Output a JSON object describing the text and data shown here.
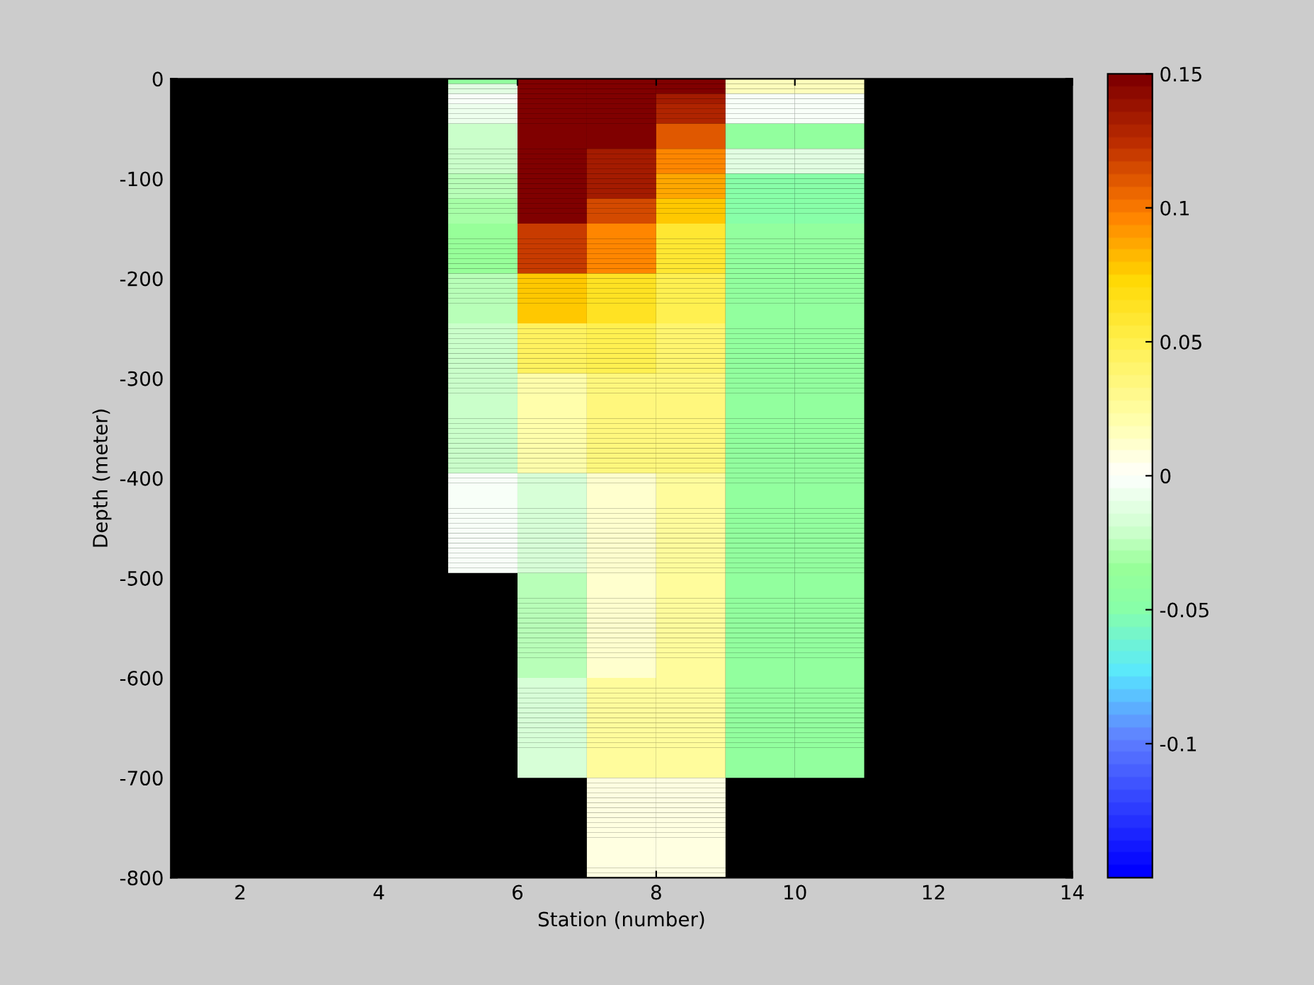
{
  "chart_data": {
    "type": "heatmap",
    "xlabel": "Station (number)",
    "ylabel": "Depth (meter)",
    "xlim": [
      1,
      14
    ],
    "xticks": [
      2,
      4,
      6,
      8,
      10,
      12,
      14
    ],
    "ylim": [
      -800,
      0
    ],
    "yticks": [
      -800,
      -700,
      -600,
      -500,
      -400,
      -300,
      -200,
      -100,
      0
    ],
    "clim": [
      -0.15,
      0.15
    ],
    "cticks": [
      {
        "value": -0.1,
        "label": "-0.1"
      },
      {
        "value": -0.05,
        "label": "-0.05"
      },
      0,
      0.05,
      0.1,
      0.15
    ],
    "cells": [
      [
        null,
        null,
        null,
        null,
        -0.04,
        0.15,
        0.15,
        0.15,
        0.015,
        0.015,
        null,
        null,
        null
      ],
      [
        null,
        null,
        null,
        null,
        -0.01,
        0.15,
        0.15,
        0.15,
        0.015,
        0.015,
        null,
        null,
        null
      ],
      [
        null,
        null,
        null,
        null,
        -0.01,
        0.15,
        0.15,
        0.15,
        0.015,
        0.015,
        null,
        null,
        null
      ],
      [
        null,
        null,
        null,
        null,
        -0.003,
        0.15,
        0.15,
        0.135,
        -0.004,
        -0.004,
        null,
        null,
        null
      ],
      [
        null,
        null,
        null,
        null,
        -0.003,
        0.15,
        0.15,
        0.135,
        -0.004,
        -0.004,
        null,
        null,
        null
      ],
      [
        null,
        null,
        null,
        null,
        -0.008,
        0.15,
        0.15,
        0.13,
        -0.004,
        -0.004,
        null,
        null,
        null
      ],
      [
        null,
        null,
        null,
        null,
        -0.008,
        0.15,
        0.15,
        0.13,
        -0.004,
        -0.004,
        null,
        null,
        null
      ],
      [
        null,
        null,
        null,
        null,
        -0.008,
        0.15,
        0.15,
        0.13,
        -0.004,
        -0.004,
        null,
        null,
        null
      ],
      [
        null,
        null,
        null,
        null,
        -0.008,
        0.15,
        0.15,
        0.13,
        -0.004,
        -0.004,
        null,
        null,
        null
      ],
      [
        null,
        null,
        null,
        null,
        -0.02,
        0.15,
        0.15,
        0.11,
        -0.04,
        -0.04,
        null,
        null,
        null
      ],
      [
        null,
        null,
        null,
        null,
        -0.02,
        0.15,
        0.15,
        0.11,
        -0.04,
        -0.04,
        null,
        null,
        null
      ],
      [
        null,
        null,
        null,
        null,
        -0.02,
        0.15,
        0.15,
        0.11,
        -0.04,
        -0.04,
        null,
        null,
        null
      ],
      [
        null,
        null,
        null,
        null,
        -0.02,
        0.15,
        0.15,
        0.11,
        -0.04,
        -0.04,
        null,
        null,
        null
      ],
      [
        null,
        null,
        null,
        null,
        -0.02,
        0.15,
        0.15,
        0.11,
        -0.04,
        -0.04,
        null,
        null,
        null
      ],
      [
        null,
        null,
        null,
        null,
        -0.02,
        0.15,
        0.135,
        0.095,
        -0.012,
        -0.012,
        null,
        null,
        null
      ],
      [
        null,
        null,
        null,
        null,
        -0.02,
        0.15,
        0.135,
        0.095,
        -0.012,
        -0.012,
        null,
        null,
        null
      ],
      [
        null,
        null,
        null,
        null,
        -0.02,
        0.15,
        0.135,
        0.095,
        -0.012,
        -0.012,
        null,
        null,
        null
      ],
      [
        null,
        null,
        null,
        null,
        -0.02,
        0.15,
        0.135,
        0.095,
        -0.012,
        -0.012,
        null,
        null,
        null
      ],
      [
        null,
        null,
        null,
        null,
        -0.02,
        0.15,
        0.135,
        0.095,
        -0.012,
        -0.012,
        null,
        null,
        null
      ],
      [
        null,
        null,
        null,
        null,
        -0.025,
        0.15,
        0.135,
        0.085,
        -0.05,
        -0.05,
        null,
        null,
        null
      ],
      [
        null,
        null,
        null,
        null,
        -0.025,
        0.15,
        0.135,
        0.085,
        -0.05,
        -0.05,
        null,
        null,
        null
      ],
      [
        null,
        null,
        null,
        null,
        -0.025,
        0.15,
        0.135,
        0.085,
        -0.05,
        -0.05,
        null,
        null,
        null
      ],
      [
        null,
        null,
        null,
        null,
        -0.025,
        0.15,
        0.135,
        0.085,
        -0.05,
        -0.05,
        null,
        null,
        null
      ],
      [
        null,
        null,
        null,
        null,
        -0.025,
        0.15,
        0.135,
        0.085,
        -0.05,
        -0.05,
        null,
        null,
        null
      ],
      [
        null,
        null,
        null,
        null,
        -0.03,
        0.15,
        0.115,
        0.075,
        -0.05,
        -0.05,
        null,
        null,
        null
      ],
      [
        null,
        null,
        null,
        null,
        -0.03,
        0.15,
        0.115,
        0.075,
        -0.05,
        -0.05,
        null,
        null,
        null
      ],
      [
        null,
        null,
        null,
        null,
        -0.03,
        0.15,
        0.115,
        0.075,
        -0.05,
        -0.05,
        null,
        null,
        null
      ],
      [
        null,
        null,
        null,
        null,
        -0.03,
        0.15,
        0.115,
        0.075,
        -0.05,
        -0.05,
        null,
        null,
        null
      ],
      [
        null,
        null,
        null,
        null,
        -0.03,
        0.15,
        0.115,
        0.075,
        -0.05,
        -0.05,
        null,
        null,
        null
      ],
      [
        null,
        null,
        null,
        null,
        -0.035,
        0.12,
        0.095,
        0.06,
        -0.04,
        -0.04,
        null,
        null,
        null
      ],
      [
        null,
        null,
        null,
        null,
        -0.035,
        0.12,
        0.095,
        0.06,
        -0.04,
        -0.04,
        null,
        null,
        null
      ],
      [
        null,
        null,
        null,
        null,
        -0.035,
        0.12,
        0.095,
        0.06,
        -0.04,
        -0.04,
        null,
        null,
        null
      ],
      [
        null,
        null,
        null,
        null,
        -0.035,
        0.12,
        0.095,
        0.06,
        -0.04,
        -0.04,
        null,
        null,
        null
      ],
      [
        null,
        null,
        null,
        null,
        -0.035,
        0.12,
        0.095,
        0.06,
        -0.04,
        -0.04,
        null,
        null,
        null
      ],
      [
        null,
        null,
        null,
        null,
        -0.035,
        0.12,
        0.095,
        0.06,
        -0.04,
        -0.04,
        null,
        null,
        null
      ],
      [
        null,
        null,
        null,
        null,
        -0.035,
        0.12,
        0.095,
        0.06,
        -0.04,
        -0.04,
        null,
        null,
        null
      ],
      [
        null,
        null,
        null,
        null,
        -0.035,
        0.12,
        0.095,
        0.06,
        -0.04,
        -0.04,
        null,
        null,
        null
      ],
      [
        null,
        null,
        null,
        null,
        -0.035,
        0.12,
        0.095,
        0.06,
        -0.04,
        -0.04,
        null,
        null,
        null
      ],
      [
        null,
        null,
        null,
        null,
        -0.035,
        0.12,
        0.095,
        0.06,
        -0.04,
        -0.04,
        null,
        null,
        null
      ],
      [
        null,
        null,
        null,
        null,
        -0.028,
        0.075,
        0.065,
        0.05,
        -0.04,
        -0.04,
        null,
        null,
        null
      ],
      [
        null,
        null,
        null,
        null,
        -0.028,
        0.075,
        0.065,
        0.05,
        -0.04,
        -0.04,
        null,
        null,
        null
      ],
      [
        null,
        null,
        null,
        null,
        -0.028,
        0.075,
        0.065,
        0.05,
        -0.04,
        -0.04,
        null,
        null,
        null
      ],
      [
        null,
        null,
        null,
        null,
        -0.028,
        0.075,
        0.065,
        0.05,
        -0.04,
        -0.04,
        null,
        null,
        null
      ],
      [
        null,
        null,
        null,
        null,
        -0.028,
        0.075,
        0.065,
        0.05,
        -0.04,
        -0.04,
        null,
        null,
        null
      ],
      [
        null,
        null,
        null,
        null,
        -0.028,
        0.075,
        0.065,
        0.05,
        -0.04,
        -0.04,
        null,
        null,
        null
      ],
      [
        null,
        null,
        null,
        null,
        -0.028,
        0.075,
        0.065,
        0.05,
        -0.04,
        -0.04,
        null,
        null,
        null
      ],
      [
        null,
        null,
        null,
        null,
        -0.028,
        0.075,
        0.065,
        0.05,
        -0.04,
        -0.04,
        null,
        null,
        null
      ],
      [
        null,
        null,
        null,
        null,
        -0.028,
        0.075,
        0.065,
        0.05,
        -0.04,
        -0.04,
        null,
        null,
        null
      ],
      [
        null,
        null,
        null,
        null,
        -0.028,
        0.075,
        0.065,
        0.05,
        -0.04,
        -0.04,
        null,
        null,
        null
      ],
      [
        null,
        null,
        null,
        null,
        -0.02,
        0.045,
        0.048,
        0.04,
        -0.04,
        -0.04,
        null,
        null,
        null
      ],
      [
        null,
        null,
        null,
        null,
        -0.02,
        0.045,
        0.048,
        0.04,
        -0.04,
        -0.04,
        null,
        null,
        null
      ],
      [
        null,
        null,
        null,
        null,
        -0.02,
        0.045,
        0.048,
        0.04,
        -0.04,
        -0.04,
        null,
        null,
        null
      ],
      [
        null,
        null,
        null,
        null,
        -0.02,
        0.045,
        0.048,
        0.04,
        -0.04,
        -0.04,
        null,
        null,
        null
      ],
      [
        null,
        null,
        null,
        null,
        -0.02,
        0.045,
        0.048,
        0.04,
        -0.04,
        -0.04,
        null,
        null,
        null
      ],
      [
        null,
        null,
        null,
        null,
        -0.02,
        0.045,
        0.048,
        0.04,
        -0.04,
        -0.04,
        null,
        null,
        null
      ],
      [
        null,
        null,
        null,
        null,
        -0.02,
        0.045,
        0.048,
        0.04,
        -0.04,
        -0.04,
        null,
        null,
        null
      ],
      [
        null,
        null,
        null,
        null,
        -0.02,
        0.045,
        0.048,
        0.04,
        -0.04,
        -0.04,
        null,
        null,
        null
      ],
      [
        null,
        null,
        null,
        null,
        -0.02,
        0.045,
        0.048,
        0.04,
        -0.04,
        -0.04,
        null,
        null,
        null
      ],
      [
        null,
        null,
        null,
        null,
        -0.02,
        0.045,
        0.048,
        0.04,
        -0.04,
        -0.04,
        null,
        null,
        null
      ],
      [
        null,
        null,
        null,
        null,
        -0.02,
        0.02,
        0.035,
        0.035,
        -0.04,
        -0.04,
        null,
        null,
        null
      ],
      [
        null,
        null,
        null,
        null,
        -0.02,
        0.02,
        0.035,
        0.035,
        -0.04,
        -0.04,
        null,
        null,
        null
      ],
      [
        null,
        null,
        null,
        null,
        -0.02,
        0.02,
        0.035,
        0.035,
        -0.04,
        -0.04,
        null,
        null,
        null
      ],
      [
        null,
        null,
        null,
        null,
        -0.02,
        0.02,
        0.035,
        0.035,
        -0.04,
        -0.04,
        null,
        null,
        null
      ],
      [
        null,
        null,
        null,
        null,
        -0.02,
        0.02,
        0.035,
        0.035,
        -0.04,
        -0.04,
        null,
        null,
        null
      ],
      [
        null,
        null,
        null,
        null,
        -0.02,
        0.02,
        0.035,
        0.035,
        -0.04,
        -0.04,
        null,
        null,
        null
      ],
      [
        null,
        null,
        null,
        null,
        -0.02,
        0.02,
        0.035,
        0.035,
        -0.04,
        -0.04,
        null,
        null,
        null
      ],
      [
        null,
        null,
        null,
        null,
        -0.02,
        0.02,
        0.035,
        0.035,
        -0.04,
        -0.04,
        null,
        null,
        null
      ],
      [
        null,
        null,
        null,
        null,
        -0.02,
        0.02,
        0.035,
        0.035,
        -0.04,
        -0.04,
        null,
        null,
        null
      ],
      [
        null,
        null,
        null,
        null,
        -0.02,
        0.02,
        0.035,
        0.035,
        -0.04,
        -0.04,
        null,
        null,
        null
      ],
      [
        null,
        null,
        null,
        null,
        -0.02,
        0.02,
        0.035,
        0.035,
        -0.04,
        -0.04,
        null,
        null,
        null
      ],
      [
        null,
        null,
        null,
        null,
        -0.02,
        0.02,
        0.035,
        0.035,
        -0.04,
        -0.04,
        null,
        null,
        null
      ],
      [
        null,
        null,
        null,
        null,
        -0.02,
        0.02,
        0.035,
        0.035,
        -0.04,
        -0.04,
        null,
        null,
        null
      ],
      [
        null,
        null,
        null,
        null,
        -0.02,
        0.02,
        0.035,
        0.035,
        -0.04,
        -0.04,
        null,
        null,
        null
      ],
      [
        null,
        null,
        null,
        null,
        -0.02,
        0.02,
        0.035,
        0.035,
        -0.04,
        -0.04,
        null,
        null,
        null
      ],
      [
        null,
        null,
        null,
        null,
        -0.02,
        0.02,
        0.035,
        0.035,
        -0.04,
        -0.04,
        null,
        null,
        null
      ],
      [
        null,
        null,
        null,
        null,
        -0.02,
        0.02,
        0.035,
        0.035,
        -0.04,
        -0.04,
        null,
        null,
        null
      ],
      [
        null,
        null,
        null,
        null,
        -0.02,
        0.02,
        0.035,
        0.035,
        -0.04,
        -0.04,
        null,
        null,
        null
      ],
      [
        null,
        null,
        null,
        null,
        -0.02,
        0.02,
        0.035,
        0.035,
        -0.04,
        -0.04,
        null,
        null,
        null
      ],
      [
        null,
        null,
        null,
        null,
        -0.02,
        0.02,
        0.035,
        0.035,
        -0.04,
        -0.04,
        null,
        null,
        null
      ],
      [
        null,
        null,
        null,
        null,
        -0.004,
        -0.015,
        0.01,
        0.025,
        -0.04,
        -0.04,
        null,
        null,
        null
      ],
      [
        null,
        null,
        null,
        null,
        -0.004,
        -0.015,
        0.01,
        0.025,
        -0.04,
        -0.04,
        null,
        null,
        null
      ],
      [
        null,
        null,
        null,
        null,
        -0.004,
        -0.015,
        0.01,
        0.025,
        -0.04,
        -0.04,
        null,
        null,
        null
      ],
      [
        null,
        null,
        null,
        null,
        -0.004,
        -0.015,
        0.01,
        0.025,
        -0.04,
        -0.04,
        null,
        null,
        null
      ],
      [
        null,
        null,
        null,
        null,
        -0.004,
        -0.015,
        0.01,
        0.025,
        -0.04,
        -0.04,
        null,
        null,
        null
      ],
      [
        null,
        null,
        null,
        null,
        -0.004,
        -0.015,
        0.01,
        0.025,
        -0.04,
        -0.04,
        null,
        null,
        null
      ],
      [
        null,
        null,
        null,
        null,
        -0.004,
        -0.015,
        0.01,
        0.025,
        -0.04,
        -0.04,
        null,
        null,
        null
      ],
      [
        null,
        null,
        null,
        null,
        -0.004,
        -0.015,
        0.01,
        0.025,
        -0.04,
        -0.04,
        null,
        null,
        null
      ],
      [
        null,
        null,
        null,
        null,
        -0.004,
        -0.015,
        0.01,
        0.025,
        -0.04,
        -0.04,
        null,
        null,
        null
      ],
      [
        null,
        null,
        null,
        null,
        -0.004,
        -0.015,
        0.01,
        0.025,
        -0.04,
        -0.04,
        null,
        null,
        null
      ],
      [
        null,
        null,
        null,
        null,
        -0.004,
        -0.015,
        0.01,
        0.025,
        -0.04,
        -0.04,
        null,
        null,
        null
      ],
      [
        null,
        null,
        null,
        null,
        -0.004,
        -0.015,
        0.01,
        0.025,
        -0.04,
        -0.04,
        null,
        null,
        null
      ],
      [
        null,
        null,
        null,
        null,
        -0.004,
        -0.015,
        0.01,
        0.025,
        -0.04,
        -0.04,
        null,
        null,
        null
      ],
      [
        null,
        null,
        null,
        null,
        -0.004,
        -0.015,
        0.01,
        0.025,
        -0.04,
        -0.04,
        null,
        null,
        null
      ],
      [
        null,
        null,
        null,
        null,
        -0.004,
        -0.015,
        0.01,
        0.025,
        -0.04,
        -0.04,
        null,
        null,
        null
      ],
      [
        null,
        null,
        null,
        null,
        -0.004,
        -0.015,
        0.01,
        0.025,
        -0.04,
        -0.04,
        null,
        null,
        null
      ],
      [
        null,
        null,
        null,
        null,
        -0.004,
        -0.015,
        0.01,
        0.025,
        -0.04,
        -0.04,
        null,
        null,
        null
      ],
      [
        null,
        null,
        null,
        null,
        -0.004,
        -0.015,
        0.01,
        0.025,
        -0.04,
        -0.04,
        null,
        null,
        null
      ],
      [
        null,
        null,
        null,
        null,
        -0.004,
        -0.015,
        0.01,
        0.025,
        -0.04,
        -0.04,
        null,
        null,
        null
      ],
      [
        null,
        null,
        null,
        null,
        -0.004,
        -0.015,
        0.01,
        0.025,
        -0.04,
        -0.04,
        null,
        null,
        null
      ],
      [
        null,
        null,
        null,
        null,
        null,
        -0.025,
        0.01,
        0.025,
        -0.04,
        -0.04,
        null,
        null,
        null
      ],
      [
        null,
        null,
        null,
        null,
        null,
        -0.025,
        0.01,
        0.025,
        -0.04,
        -0.04,
        null,
        null,
        null
      ],
      [
        null,
        null,
        null,
        null,
        null,
        -0.025,
        0.01,
        0.025,
        -0.04,
        -0.04,
        null,
        null,
        null
      ],
      [
        null,
        null,
        null,
        null,
        null,
        -0.025,
        0.01,
        0.025,
        -0.04,
        -0.04,
        null,
        null,
        null
      ],
      [
        null,
        null,
        null,
        null,
        null,
        -0.025,
        0.01,
        0.025,
        -0.04,
        -0.04,
        null,
        null,
        null
      ],
      [
        null,
        null,
        null,
        null,
        null,
        -0.025,
        0.01,
        0.025,
        -0.04,
        -0.04,
        null,
        null,
        null
      ],
      [
        null,
        null,
        null,
        null,
        null,
        -0.025,
        0.01,
        0.025,
        -0.04,
        -0.04,
        null,
        null,
        null
      ],
      [
        null,
        null,
        null,
        null,
        null,
        -0.025,
        0.01,
        0.025,
        -0.04,
        -0.04,
        null,
        null,
        null
      ],
      [
        null,
        null,
        null,
        null,
        null,
        -0.025,
        0.01,
        0.025,
        -0.04,
        -0.04,
        null,
        null,
        null
      ],
      [
        null,
        null,
        null,
        null,
        null,
        -0.025,
        0.01,
        0.025,
        -0.04,
        -0.04,
        null,
        null,
        null
      ],
      [
        null,
        null,
        null,
        null,
        null,
        -0.025,
        0.01,
        0.025,
        -0.04,
        -0.04,
        null,
        null,
        null
      ],
      [
        null,
        null,
        null,
        null,
        null,
        -0.025,
        0.01,
        0.025,
        -0.04,
        -0.04,
        null,
        null,
        null
      ],
      [
        null,
        null,
        null,
        null,
        null,
        -0.025,
        0.01,
        0.025,
        -0.04,
        -0.04,
        null,
        null,
        null
      ],
      [
        null,
        null,
        null,
        null,
        null,
        -0.025,
        0.01,
        0.025,
        -0.04,
        -0.04,
        null,
        null,
        null
      ],
      [
        null,
        null,
        null,
        null,
        null,
        -0.025,
        0.01,
        0.025,
        -0.04,
        -0.04,
        null,
        null,
        null
      ],
      [
        null,
        null,
        null,
        null,
        null,
        -0.025,
        0.01,
        0.025,
        -0.04,
        -0.04,
        null,
        null,
        null
      ],
      [
        null,
        null,
        null,
        null,
        null,
        -0.025,
        0.01,
        0.025,
        -0.04,
        -0.04,
        null,
        null,
        null
      ],
      [
        null,
        null,
        null,
        null,
        null,
        -0.025,
        0.01,
        0.025,
        -0.04,
        -0.04,
        null,
        null,
        null
      ],
      [
        null,
        null,
        null,
        null,
        null,
        -0.025,
        0.01,
        0.025,
        -0.04,
        -0.04,
        null,
        null,
        null
      ],
      [
        null,
        null,
        null,
        null,
        null,
        -0.025,
        0.01,
        0.025,
        -0.04,
        -0.04,
        null,
        null,
        null
      ],
      [
        null,
        null,
        null,
        null,
        null,
        -0.025,
        0.01,
        0.025,
        -0.04,
        -0.04,
        null,
        null,
        null
      ],
      [
        null,
        null,
        null,
        null,
        null,
        -0.015,
        0.025,
        0.025,
        -0.042,
        -0.042,
        null,
        null,
        null
      ],
      [
        null,
        null,
        null,
        null,
        null,
        -0.015,
        0.025,
        0.025,
        -0.042,
        -0.042,
        null,
        null,
        null
      ],
      [
        null,
        null,
        null,
        null,
        null,
        -0.015,
        0.025,
        0.025,
        -0.042,
        -0.042,
        null,
        null,
        null
      ],
      [
        null,
        null,
        null,
        null,
        null,
        -0.015,
        0.025,
        0.025,
        -0.042,
        -0.042,
        null,
        null,
        null
      ],
      [
        null,
        null,
        null,
        null,
        null,
        -0.015,
        0.025,
        0.025,
        -0.042,
        -0.042,
        null,
        null,
        null
      ],
      [
        null,
        null,
        null,
        null,
        null,
        -0.015,
        0.025,
        0.025,
        -0.042,
        -0.042,
        null,
        null,
        null
      ],
      [
        null,
        null,
        null,
        null,
        null,
        -0.015,
        0.025,
        0.025,
        -0.042,
        -0.042,
        null,
        null,
        null
      ],
      [
        null,
        null,
        null,
        null,
        null,
        -0.015,
        0.025,
        0.025,
        -0.042,
        -0.042,
        null,
        null,
        null
      ],
      [
        null,
        null,
        null,
        null,
        null,
        -0.015,
        0.025,
        0.025,
        -0.042,
        -0.042,
        null,
        null,
        null
      ],
      [
        null,
        null,
        null,
        null,
        null,
        -0.015,
        0.025,
        0.025,
        -0.042,
        -0.042,
        null,
        null,
        null
      ],
      [
        null,
        null,
        null,
        null,
        null,
        -0.015,
        0.025,
        0.025,
        -0.042,
        -0.042,
        null,
        null,
        null
      ],
      [
        null,
        null,
        null,
        null,
        null,
        -0.015,
        0.025,
        0.025,
        -0.042,
        -0.042,
        null,
        null,
        null
      ],
      [
        null,
        null,
        null,
        null,
        null,
        -0.015,
        0.025,
        0.025,
        -0.042,
        -0.042,
        null,
        null,
        null
      ],
      [
        null,
        null,
        null,
        null,
        null,
        -0.015,
        0.025,
        0.025,
        -0.042,
        -0.042,
        null,
        null,
        null
      ],
      [
        null,
        null,
        null,
        null,
        null,
        -0.015,
        0.025,
        0.025,
        -0.042,
        -0.042,
        null,
        null,
        null
      ],
      [
        null,
        null,
        null,
        null,
        null,
        -0.015,
        0.025,
        0.025,
        -0.042,
        -0.042,
        null,
        null,
        null
      ],
      [
        null,
        null,
        null,
        null,
        null,
        -0.015,
        0.025,
        0.025,
        -0.042,
        -0.042,
        null,
        null,
        null
      ],
      [
        null,
        null,
        null,
        null,
        null,
        -0.015,
        0.025,
        0.025,
        -0.042,
        -0.042,
        null,
        null,
        null
      ],
      [
        null,
        null,
        null,
        null,
        null,
        -0.015,
        0.025,
        0.025,
        -0.042,
        -0.042,
        null,
        null,
        null
      ],
      [
        null,
        null,
        null,
        null,
        null,
        -0.015,
        0.025,
        0.025,
        -0.042,
        -0.042,
        null,
        null,
        null
      ],
      [
        null,
        null,
        null,
        null,
        null,
        null,
        0.005,
        0.005,
        null,
        null,
        null,
        null,
        null
      ],
      [
        null,
        null,
        null,
        null,
        null,
        null,
        0.005,
        0.005,
        null,
        null,
        null,
        null,
        null
      ],
      [
        null,
        null,
        null,
        null,
        null,
        null,
        0.005,
        0.005,
        null,
        null,
        null,
        null,
        null
      ],
      [
        null,
        null,
        null,
        null,
        null,
        null,
        0.005,
        0.005,
        null,
        null,
        null,
        null,
        null
      ],
      [
        null,
        null,
        null,
        null,
        null,
        null,
        0.005,
        0.005,
        null,
        null,
        null,
        null,
        null
      ],
      [
        null,
        null,
        null,
        null,
        null,
        null,
        0.005,
        0.005,
        null,
        null,
        null,
        null,
        null
      ],
      [
        null,
        null,
        null,
        null,
        null,
        null,
        0.005,
        0.005,
        null,
        null,
        null,
        null,
        null
      ],
      [
        null,
        null,
        null,
        null,
        null,
        null,
        0.005,
        0.005,
        null,
        null,
        null,
        null,
        null
      ],
      [
        null,
        null,
        null,
        null,
        null,
        null,
        0.005,
        0.005,
        null,
        null,
        null,
        null,
        null
      ],
      [
        null,
        null,
        null,
        null,
        null,
        null,
        0.005,
        0.005,
        null,
        null,
        null,
        null,
        null
      ],
      [
        null,
        null,
        null,
        null,
        null,
        null,
        0.005,
        0.005,
        null,
        null,
        null,
        null,
        null
      ],
      [
        null,
        null,
        null,
        null,
        null,
        null,
        0.005,
        0.005,
        null,
        null,
        null,
        null,
        null
      ],
      [
        null,
        null,
        null,
        null,
        null,
        null,
        0.005,
        0.005,
        null,
        null,
        null,
        null,
        null
      ],
      [
        null,
        null,
        null,
        null,
        null,
        null,
        0.005,
        0.005,
        null,
        null,
        null,
        null,
        null
      ],
      [
        null,
        null,
        null,
        null,
        null,
        null,
        0.005,
        0.005,
        null,
        null,
        null,
        null,
        null
      ],
      [
        null,
        null,
        null,
        null,
        null,
        null,
        0.005,
        0.005,
        null,
        null,
        null,
        null,
        null
      ],
      [
        null,
        null,
        null,
        null,
        null,
        null,
        0.005,
        0.005,
        null,
        null,
        null,
        null,
        null
      ],
      [
        null,
        null,
        null,
        null,
        null,
        null,
        0.005,
        0.005,
        null,
        null,
        null,
        null,
        null
      ],
      [
        null,
        null,
        null,
        null,
        null,
        null,
        0.005,
        0.005,
        null,
        null,
        null,
        null,
        null
      ],
      [
        null,
        null,
        null,
        null,
        null,
        null,
        0.005,
        0.005,
        null,
        null,
        null,
        null,
        null
      ]
    ]
  }
}
